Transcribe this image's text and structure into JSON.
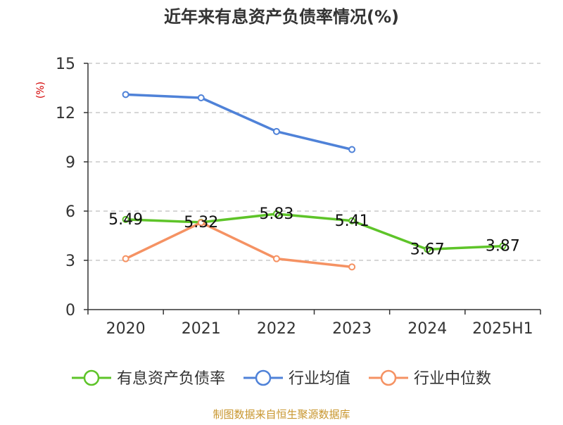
{
  "chart_data": {
    "type": "line",
    "title": "近年来有息资产负债率情况(%)",
    "ylabel": "(%)",
    "ylim": [
      0,
      15
    ],
    "yticks": [
      0,
      3,
      6,
      9,
      12,
      15
    ],
    "grid": true,
    "legend_position": "bottom",
    "categories": [
      "2020",
      "2021",
      "2022",
      "2023",
      "2024",
      "2025H1"
    ],
    "series": [
      {
        "name": "有息资产负债率",
        "color": "#5ec429",
        "values": [
          5.49,
          5.32,
          5.83,
          5.41,
          3.67,
          3.87
        ],
        "labels": [
          "5.49",
          "5.32",
          "5.83",
          "5.41",
          "3.67",
          "3.87"
        ]
      },
      {
        "name": "行业均值",
        "color": "#4f82d8",
        "values": [
          13.1,
          12.9,
          10.85,
          9.75,
          null,
          null
        ]
      },
      {
        "name": "行业中位数",
        "color": "#f59263",
        "values": [
          3.1,
          5.3,
          3.1,
          2.6,
          null,
          null
        ]
      }
    ]
  },
  "source": "制图数据来自恒生聚源数据库",
  "colors": {
    "title": "#333333",
    "axis": "#333333",
    "grid": "#bdbdbd",
    "ylabel": "#d40000",
    "source": "#c8962e"
  }
}
